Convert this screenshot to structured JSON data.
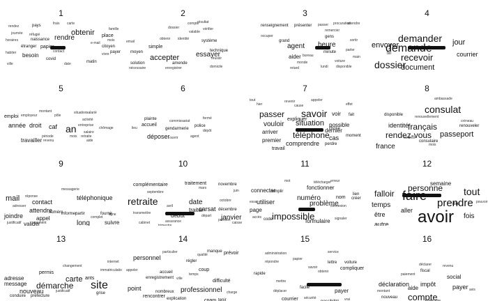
{
  "panels": [
    {
      "number": "1",
      "words": [
        "obtenir",
        "rendre",
        "naissance",
        "papier",
        "étranger",
        "besoin",
        "covid",
        "place",
        "mois",
        "e-mail",
        "citoyen",
        "famille",
        "payer",
        "vivre",
        "matin",
        "rendez",
        "pays",
        "journée",
        "horaires",
        "habiter",
        "ville",
        "réfugié",
        "carte",
        "frais",
        "date",
        "contact"
      ]
    },
    {
      "number": "2",
      "words": [
        "accepter",
        "essayer",
        "simple",
        "moyen",
        "solution",
        "nécessaire",
        "amende",
        "enregistrer",
        "email",
        "résultat",
        "système",
        "technique",
        "réussir",
        "domicile",
        "obtenir",
        "valable",
        "identité",
        "dossier",
        "vérifier",
        "compte"
      ]
    },
    {
      "number": "3",
      "words": [
        "agent",
        "heure",
        "aider",
        "grand",
        "occuper",
        "minute",
        "gens",
        "remercier",
        "procuration",
        "renseignement",
        "présenter",
        "passer",
        "attendre",
        "bureau",
        "monde",
        "retard",
        "voiture",
        "lundi",
        "disponible",
        "main",
        "sortir",
        "parler"
      ]
    },
    {
      "number": "4",
      "words": [
        "demander",
        "demande",
        "jour",
        "envoyer",
        "recevoir",
        "courrier",
        "dossier",
        "document",
        "fin"
      ]
    },
    {
      "number": "5",
      "words": [
        "an",
        "année",
        "droit",
        "caf",
        "travailler",
        "emploi",
        "employeur",
        "montant",
        "activité",
        "entreprise",
        "salaire",
        "période",
        "aide",
        "retraite",
        "situation",
        "pôle",
        "revenu",
        "mois",
        "chômage",
        "salarié"
      ]
    },
    {
      "number": "6",
      "words": [
        "déposer",
        "plainte",
        "accueil",
        "commissariat",
        "gendarmerie",
        "police",
        "dépôt",
        "agent",
        "ouvrir",
        "lieu",
        "fermé"
      ]
    },
    {
      "number": "7",
      "words": [
        "savoir",
        "passer",
        "vouloir",
        "situation",
        "téléphone",
        "expliquer",
        "arriver",
        "premier",
        "comprendre",
        "dernier",
        "cas",
        "chose",
        "possible",
        "voir",
        "fait",
        "travail",
        "perdre",
        "moment",
        "effet",
        "cause",
        "revenir",
        "hier",
        "tout",
        "appeler"
      ]
    },
    {
      "number": "8",
      "words": [
        "consulat",
        "français",
        "rendez-vous",
        "passeport",
        "identité",
        "france",
        "disponible",
        "renouvellement",
        "créneau",
        "renouveler",
        "consulaire",
        "londres",
        "mois",
        "ambassade"
      ]
    },
    {
      "number": "9",
      "words": [
        "mail",
        "contact",
        "attendre",
        "joindre",
        "appel",
        "valider",
        "téléphonique",
        "informer",
        "long",
        "suivre",
        "fournir",
        "paiement",
        "réclamation",
        "commencer",
        "partir",
        "complet",
        "ligne",
        "messagerie",
        "réponse",
        "justificatif",
        "adresser",
        "numéro"
      ]
    },
    {
      "number": "10",
      "words": [
        "retraite",
        "date",
        "carsat",
        "traiter",
        "début",
        "janvier",
        "complémentaire",
        "traitement",
        "novembre",
        "septembre",
        "octobre",
        "décembre",
        "juin",
        "départ",
        "assurance",
        "transmettre",
        "pension",
        "mars",
        "caisse",
        "cabinet",
        "avril",
        "trimestre"
      ]
    },
    {
      "number": "11",
      "words": [
        "impossible",
        "problème",
        "numéro",
        "fonctionner",
        "utiliser",
        "connecter",
        "remplir",
        "formulaire",
        "page",
        "signaler",
        "nom",
        "créer",
        "lien",
        "code",
        "accès",
        "mot",
        "télécharger",
        "erreur",
        "connexion",
        "essai"
      ]
    },
    {
      "number": "12",
      "words": [
        "avoir",
        "faire",
        "personne",
        "prendre",
        "falloir",
        "tout",
        "semaine",
        "temps",
        "aller",
        "être",
        "fois",
        "autre",
        "dire",
        "pouvoir"
      ]
    },
    {
      "number": "13",
      "words": [
        "site",
        "démarche",
        "carte",
        "adresse",
        "message",
        "permis",
        "nouveau",
        "conduire",
        "certificat",
        "préfecture",
        "ants",
        "véhicule",
        "grise",
        "immatriculation",
        "internet",
        "changement",
        "justificatif"
      ]
    },
    {
      "number": "14",
      "words": [
        "personnel",
        "professionnel",
        "point",
        "rencontrer",
        "coup",
        "manque",
        "difficulté",
        "explication",
        "ville",
        "prévoir",
        "régler",
        "accueil",
        "particulier",
        "temps",
        "enregistrement",
        "nombreux",
        "cpam",
        "tenir",
        "charge",
        "appeler",
        "qualité"
      ]
    },
    {
      "number": "15",
      "words": [
        "payer",
        "courrier",
        "efficace",
        "possibilité",
        "compliquer",
        "lettre",
        "voiture",
        "rapide",
        "déplacer",
        "facile",
        "mettre",
        "savoir",
        "répondre",
        "administration",
        "papier",
        "obtenir",
        "sécurité",
        "service",
        "vrai"
      ]
    },
    {
      "number": "16",
      "words": [
        "compte",
        "déclaration",
        "payer",
        "aide",
        "impôt",
        "social",
        "fiscal",
        "revenu",
        "déclarer",
        "montant",
        "avis",
        "nouveau",
        "paiement",
        "prélèvement",
        "bancaire"
      ]
    }
  ]
}
